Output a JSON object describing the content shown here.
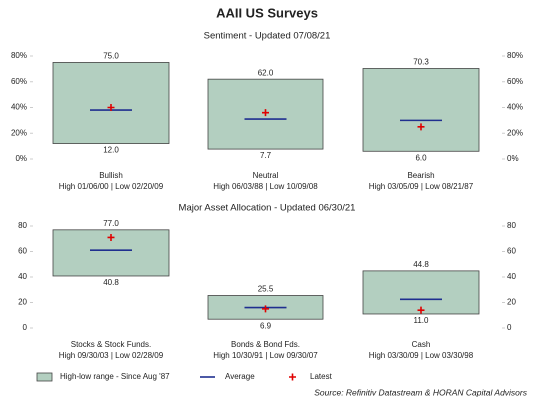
{
  "title": "AAII US Surveys",
  "chart_data": [
    {
      "type": "range",
      "title": "Sentiment - Updated 07/08/21",
      "categories": [
        "Bullish",
        "Neutral",
        "Bearish"
      ],
      "sublabels": [
        "High 01/06/00 | Low 02/20/09",
        "High 06/03/88 | Low 10/09/08",
        "High 03/05/09 | Low 08/21/87"
      ],
      "high": {
        "values": [
          75,
          62,
          70.3
        ],
        "value_labels": [
          "75.0",
          "62.0",
          "70.3"
        ]
      },
      "low": {
        "values": [
          12,
          7.7,
          6
        ],
        "value_labels": [
          "12.0",
          "7.7",
          "6.0"
        ]
      },
      "average": [
        38,
        31,
        30
      ],
      "latest": [
        40,
        36,
        25
      ],
      "ylim": [
        0,
        80
      ],
      "yticks": [
        {
          "value": 0,
          "label": "0%"
        },
        {
          "value": 20,
          "label": "20%"
        },
        {
          "value": 40,
          "label": "40%"
        },
        {
          "value": 60,
          "label": "60%"
        },
        {
          "value": 80,
          "label": "80%"
        }
      ]
    },
    {
      "type": "range",
      "title": "Major Asset Allocation - Updated 06/30/21",
      "categories": [
        "Stocks & Stock Funds.",
        "Bonds & Bond Fds.",
        "Cash"
      ],
      "sublabels": [
        "High 09/30/03 | Low 02/28/09",
        "High 10/30/91 | Low 09/30/07",
        "High 03/30/09 | Low 03/30/98"
      ],
      "high": {
        "values": [
          77,
          25.5,
          44.8
        ],
        "value_labels": [
          "77.0",
          "25.5",
          "44.8"
        ]
      },
      "low": {
        "values": [
          40.8,
          6.9,
          11
        ],
        "value_labels": [
          "40.8",
          "6.9",
          "11.0"
        ]
      },
      "average": [
        61,
        16,
        22.5
      ],
      "latest": [
        71,
        15,
        14
      ],
      "ylim": [
        0,
        80
      ],
      "yticks": [
        0,
        20,
        40,
        60,
        80
      ]
    }
  ],
  "legend": [
    {
      "name": "High-low range - Since Aug '87",
      "color": "#b3cfc0"
    },
    {
      "name": "Average",
      "color": "#1f2f8f"
    },
    {
      "name": "Latest",
      "color": "#e00000"
    }
  ],
  "source": "Source: Refinitiv Datastream & HORAN Capital Advisors"
}
